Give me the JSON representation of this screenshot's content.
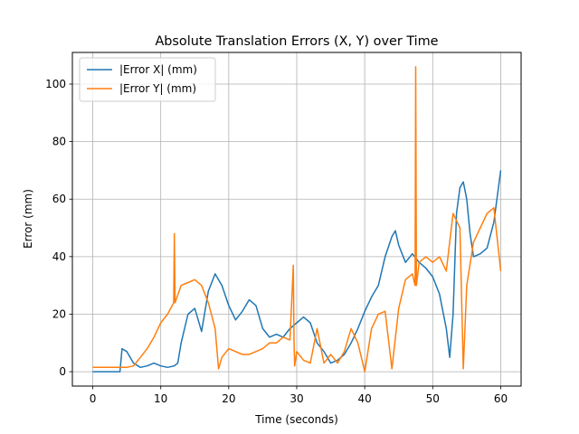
{
  "chart_data": {
    "type": "line",
    "title": "Absolute Translation Errors (X, Y) over Time",
    "xlabel": "Time (seconds)",
    "ylabel": "Error (mm)",
    "xlim": [
      -3,
      63
    ],
    "ylim": [
      -5,
      111
    ],
    "xticks": [
      0,
      10,
      20,
      30,
      40,
      50,
      60
    ],
    "yticks": [
      0,
      20,
      40,
      60,
      80,
      100
    ],
    "grid": true,
    "legend_position": "upper left",
    "series": [
      {
        "name": "|Error X| (mm)",
        "color": "#1f77b4",
        "x": [
          0,
          4,
          4.3,
          5,
          6,
          7,
          8,
          9,
          10,
          11,
          12,
          12.5,
          13,
          14,
          15,
          16,
          17,
          18,
          19,
          20,
          21,
          22,
          23,
          24,
          25,
          26,
          27,
          28,
          29,
          30,
          31,
          32,
          33,
          34,
          35,
          36,
          37,
          38,
          39,
          40,
          41,
          42,
          43,
          44,
          44.5,
          45,
          46,
          47,
          48,
          49,
          50,
          51,
          52,
          52.5,
          53,
          53.5,
          54,
          54.5,
          55,
          55.5,
          56,
          57,
          58,
          59,
          60
        ],
        "y": [
          0,
          0,
          8,
          7,
          3,
          1.5,
          2,
          3,
          2,
          1.5,
          2,
          3,
          10,
          20,
          22,
          14,
          28,
          34,
          30,
          23,
          18,
          21,
          25,
          23,
          15,
          12,
          13,
          12,
          15,
          17,
          19,
          17,
          10,
          7,
          3,
          4,
          6,
          10,
          15,
          21,
          26,
          30,
          40,
          47,
          49,
          44,
          38,
          41,
          38,
          36,
          33,
          27,
          15,
          5,
          20,
          55,
          64,
          66,
          60,
          48,
          40,
          41,
          43,
          52,
          70
        ]
      },
      {
        "name": "|Error Y| (mm)",
        "color": "#ff7f0e",
        "x": [
          0,
          4,
          5,
          6,
          7,
          8,
          9,
          10,
          11,
          11.9,
          12,
          12.1,
          13,
          14,
          15,
          16,
          17,
          18,
          18.5,
          19,
          20,
          21,
          22,
          23,
          24,
          25,
          26,
          27,
          28,
          29,
          29.5,
          29.6,
          29.7,
          30,
          31,
          32,
          33,
          34,
          35,
          36,
          37,
          38,
          39,
          40,
          41,
          42,
          43,
          44,
          45,
          46,
          47,
          47.4,
          47.5,
          47.6,
          48,
          49,
          50,
          51,
          52,
          53,
          54,
          54.5,
          55,
          56,
          57,
          58,
          59,
          60
        ],
        "y": [
          1.5,
          1.5,
          1.5,
          2,
          5,
          8,
          12,
          17,
          20,
          24,
          48,
          24,
          30,
          31,
          32,
          30,
          24,
          15,
          1,
          5,
          8,
          7,
          6,
          6,
          7,
          8,
          10,
          10,
          12,
          11,
          37,
          11,
          2,
          7,
          4,
          3,
          15,
          3,
          6,
          3,
          7,
          15,
          10,
          0,
          15,
          20,
          21,
          1,
          22,
          32,
          34,
          30,
          106,
          30,
          38,
          40,
          38,
          40,
          35,
          55,
          50,
          1,
          30,
          45,
          50,
          55,
          57,
          35
        ]
      }
    ]
  }
}
